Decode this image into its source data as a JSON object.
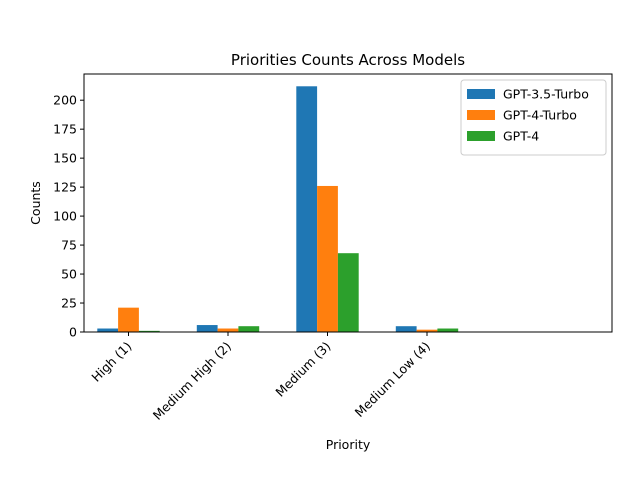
{
  "chart_data": {
    "type": "bar",
    "title": "Priorities Counts Across Models",
    "xlabel": "Priority",
    "ylabel": "Counts",
    "categories": [
      "High (1)",
      "Medium High (2)",
      "Medium (3)",
      "Medium Low (4)"
    ],
    "series": [
      {
        "name": "GPT-3.5-Turbo",
        "color": "#1f77b4",
        "values": [
          3,
          6,
          212,
          5
        ]
      },
      {
        "name": "GPT-4-Turbo",
        "color": "#ff7f0e",
        "values": [
          21,
          3,
          126,
          2
        ]
      },
      {
        "name": "GPT-4",
        "color": "#2ca02c",
        "values": [
          1,
          5,
          68,
          3
        ]
      }
    ],
    "ylim": [
      0,
      222.6
    ],
    "yticks": [
      0,
      25,
      50,
      75,
      100,
      125,
      150,
      175,
      200
    ],
    "legend_position": "top-right",
    "grid": false
  }
}
